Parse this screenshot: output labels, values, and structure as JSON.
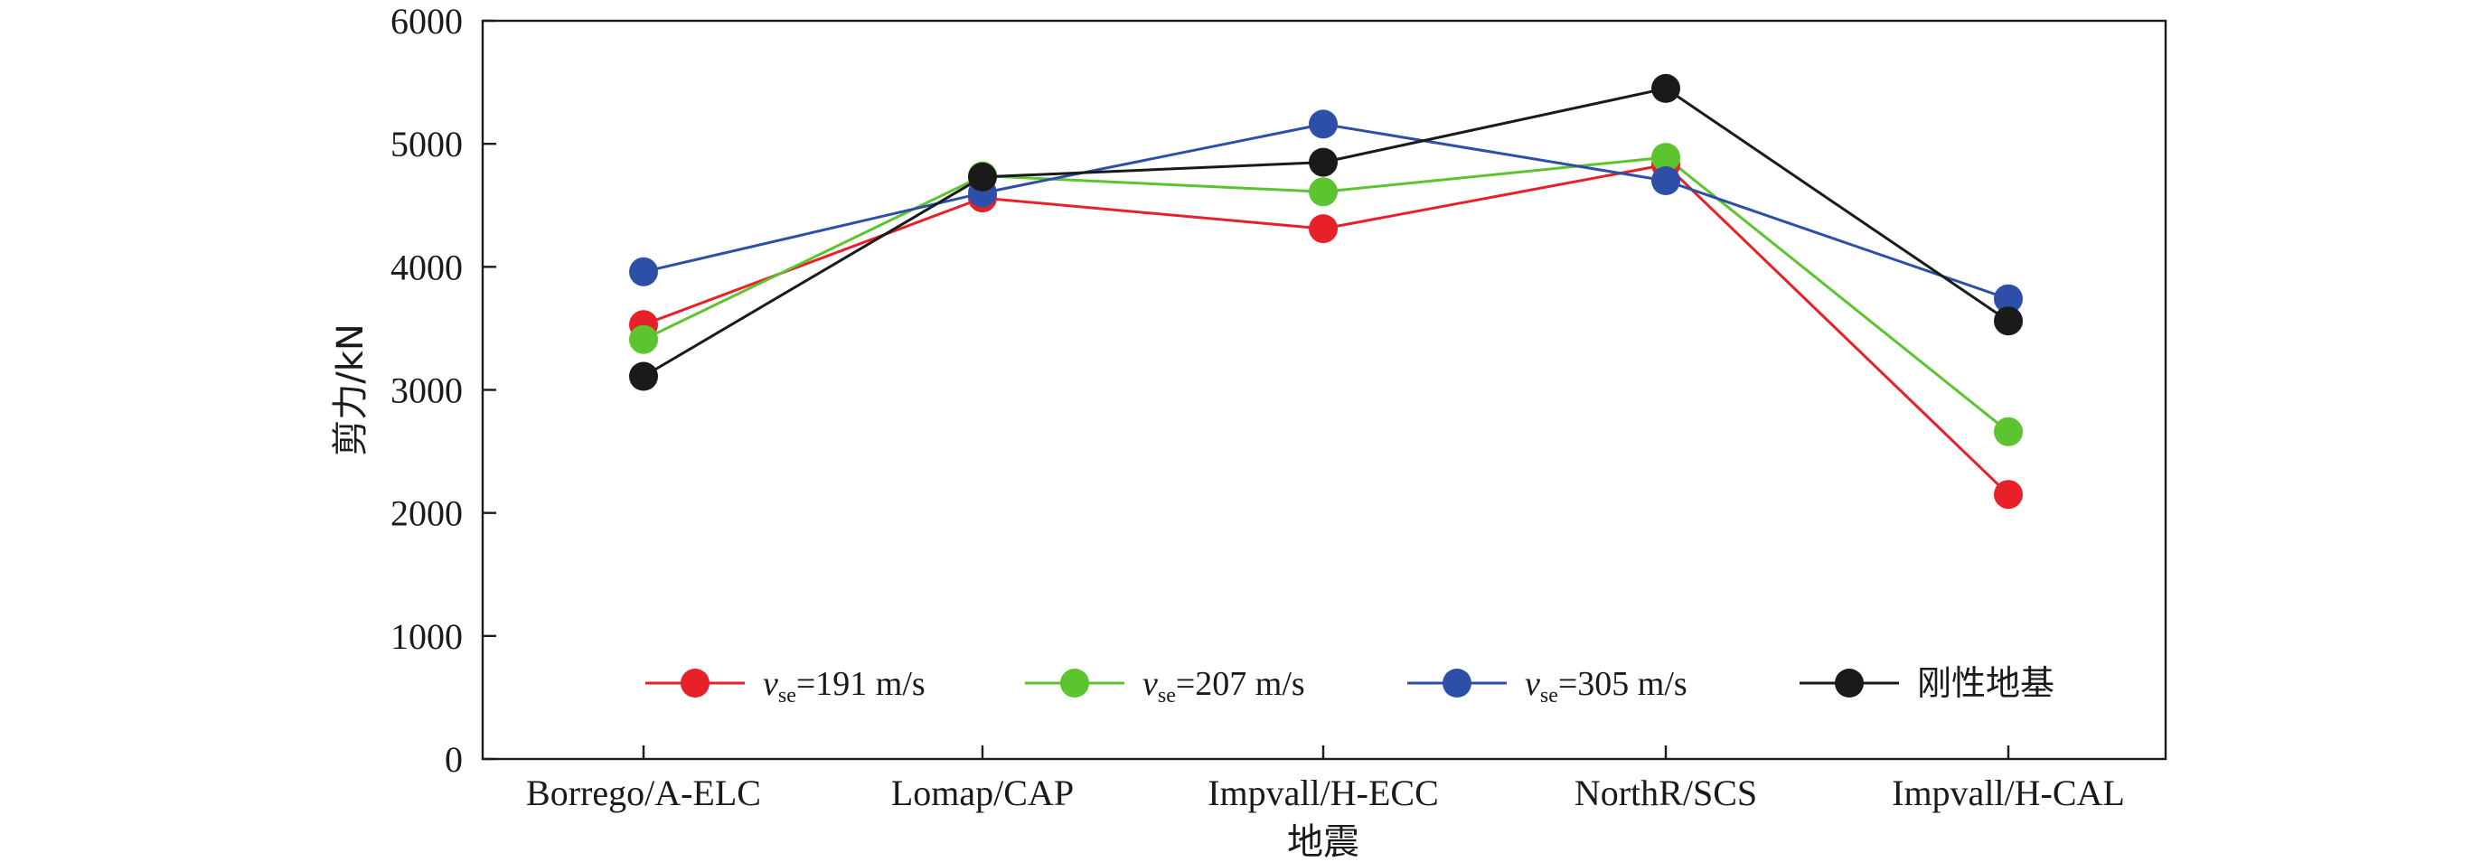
{
  "chart_data": {
    "type": "line",
    "categories": [
      "Borrego/A-ELC",
      "Lomap/CAP",
      "Impvall/H-ECC",
      "NorthR/SCS",
      "Impvall/H-CAL"
    ],
    "xlabel": "地震",
    "ylabel": "剪力/kN",
    "ylim": [
      0,
      6000
    ],
    "yticks": [
      "0",
      "1000",
      "2000",
      "3000",
      "4000",
      "5000",
      "6000"
    ],
    "grid": false,
    "legend_position": "bottom-inside",
    "series": [
      {
        "name": "v_se=191 m/s",
        "legend": {
          "var": "v",
          "sub": "se",
          "rest": "=191 m/s"
        },
        "color": "#e8202a",
        "values": [
          3530,
          4560,
          4310,
          4830,
          2150
        ]
      },
      {
        "name": "v_se=207 m/s",
        "legend": {
          "var": "v",
          "sub": "se",
          "rest": "=207 m/s"
        },
        "color": "#5cc42e",
        "values": [
          3410,
          4740,
          4610,
          4890,
          2660
        ]
      },
      {
        "name": "v_se=305 m/s",
        "legend": {
          "var": "v",
          "sub": "se",
          "rest": "=305 m/s"
        },
        "color": "#2e4fa8",
        "values": [
          3960,
          4600,
          5160,
          4700,
          3740
        ]
      },
      {
        "name": "刚性地基",
        "legend": {
          "var": "",
          "sub": "",
          "rest": "刚性地基"
        },
        "color": "#1a1a1a",
        "values": [
          3110,
          4730,
          4850,
          5450,
          3560
        ]
      }
    ]
  }
}
